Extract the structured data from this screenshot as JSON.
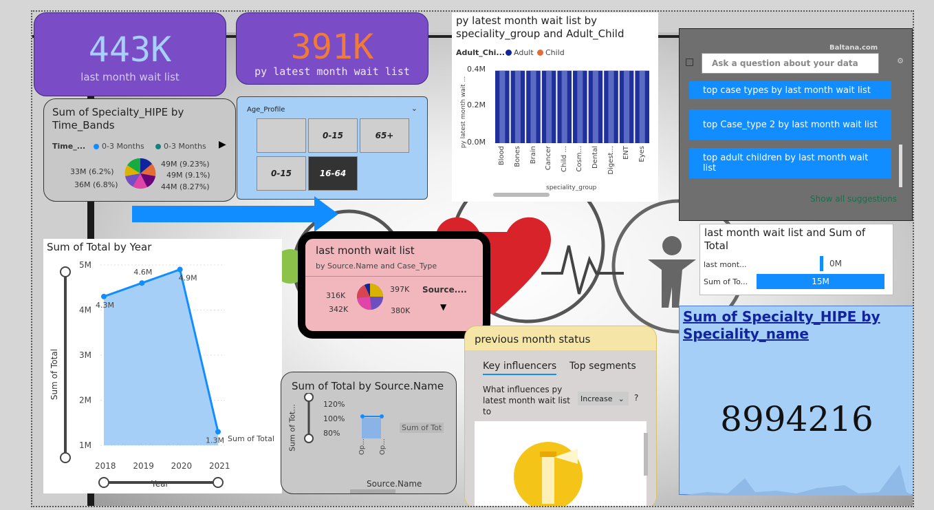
{
  "kpi1": {
    "value": "443K",
    "label": "last month wait list"
  },
  "kpi2": {
    "value": "391K",
    "label": "py latest month wait list"
  },
  "pie_time": {
    "title": "Sum of Specialty_HIPE by Time_Bands",
    "legend_title": "Time_...",
    "legend_items": [
      "0-3 Months",
      "0-3 Months"
    ],
    "labels": [
      "49M (9.23%)",
      "49M (9.1%)",
      "44M (8.27%)",
      "33M (6.2%)",
      "36M (6.8%)"
    ]
  },
  "age_slicer": {
    "title": "Age_Profile",
    "tiles": [
      "",
      "0-15",
      "65+",
      "0-15",
      "16-64"
    ]
  },
  "bar_chart": {
    "title": "py latest month wait list by speciality_group and Adult_Child",
    "legend_title": "Adult_Chi...",
    "legend_items": [
      "Adult",
      "Child"
    ],
    "ylabel": "py latest month wait ...",
    "xlabel": "speciality_group",
    "yticks": [
      "0.4M",
      "0.2M",
      "0.0M"
    ],
    "categories": [
      "Blood",
      "Bones",
      "Brain",
      "Cancer",
      "Child ...",
      "Cosm...",
      "Dental",
      "Digest...",
      "ENT",
      "Eyes"
    ]
  },
  "qa": {
    "placeholder": "Ask a question about your data",
    "brand": "Baltana.com",
    "suggestions": [
      "top case types by last month wait list",
      "top Case_type 2 by last month wait list",
      "top adult children by last month wait list"
    ],
    "show_all": "Show all suggestions"
  },
  "combo_bar": {
    "title": "last month wait list and Sum of Total",
    "rows": [
      {
        "label": "last mont...",
        "value": "0M"
      },
      {
        "label": "Sum of To...",
        "value": "15M"
      }
    ]
  },
  "line_chart": {
    "title": "Sum of Total by Year",
    "ylabel": "Sum of Total",
    "xlabel": "Year",
    "yticks": [
      "5M",
      "4M",
      "3M",
      "2M",
      "1M"
    ],
    "point_labels": [
      "4.3M",
      "4.6M",
      "4.9M",
      "1.3M"
    ],
    "series_label": "Sum of Total"
  },
  "pie_source": {
    "title": "last month wait list",
    "subtitle": "by Source.Name and Case_Type",
    "labels": [
      "397K",
      "316K",
      "342K",
      "380K"
    ],
    "legend": "Source...."
  },
  "source_chart": {
    "title": "Sum of Total by Source.Name",
    "ylabel": "Sum of Tot...",
    "xlabel": "Source.Name",
    "yticks": [
      "120%",
      "100%",
      "80%"
    ],
    "xticks": [
      "Op...",
      "Op..."
    ],
    "tooltip": "Sum of Tot"
  },
  "influencers": {
    "title": "previous month status",
    "tabs": [
      "Key influencers",
      "Top segments"
    ],
    "question": "What influences py latest month wait list to",
    "dropdown": "Increase",
    "help": "?"
  },
  "specialty_card": {
    "title": "Sum of Specialty_HIPE by Speciality_name",
    "value": "8994216"
  },
  "chart_data": [
    {
      "type": "line",
      "title": "Sum of Total by Year",
      "xlabel": "Year",
      "ylabel": "Sum of Total",
      "x": [
        2018,
        2019,
        2020,
        2021
      ],
      "series": [
        {
          "name": "Sum of Total",
          "values": [
            4.3,
            4.6,
            4.9,
            1.3
          ]
        }
      ],
      "ylim": [
        1,
        5
      ],
      "unit": "M"
    },
    {
      "type": "bar",
      "title": "py latest month wait list by speciality_group and Adult_Child",
      "xlabel": "speciality_group",
      "ylabel": "py latest month wait ...",
      "categories": [
        "Blood",
        "Bones",
        "Brain",
        "Cancer",
        "Child ...",
        "Cosm...",
        "Dental",
        "Digest...",
        "ENT",
        "Eyes"
      ],
      "series": [
        {
          "name": "Adult",
          "values": [
            0.39,
            0.39,
            0.39,
            0.39,
            0.39,
            0.39,
            0.39,
            0.39,
            0.39,
            0.39
          ]
        },
        {
          "name": "Child",
          "values": [
            0,
            0,
            0,
            0,
            0,
            0,
            0,
            0,
            0,
            0
          ]
        }
      ],
      "ylim": [
        0,
        0.4
      ],
      "unit": "M"
    },
    {
      "type": "bar",
      "title": "last month wait list and Sum of Total",
      "categories": [
        "last mont...",
        "Sum of To..."
      ],
      "values": [
        0,
        15
      ],
      "unit": "M"
    },
    {
      "type": "pie",
      "title": "Sum of Specialty_HIPE by Time_Bands",
      "values": [
        49,
        49,
        44,
        33,
        36
      ],
      "labels": [
        "49M (9.23%)",
        "49M (9.1%)",
        "44M (8.27%)",
        "33M (6.2%)",
        "36M (6.8%)"
      ]
    },
    {
      "type": "pie",
      "title": "last month wait list",
      "values": [
        397,
        380,
        342,
        316
      ],
      "labels": [
        "397K",
        "380K",
        "342K",
        "316K"
      ]
    }
  ],
  "colors": {
    "purple": "#7a4dc7",
    "blue": "#118dff",
    "navy": "#1f2f9b",
    "orange": "#e66c37",
    "lightblue": "#a6cff7",
    "pink": "#f2b6bd"
  }
}
